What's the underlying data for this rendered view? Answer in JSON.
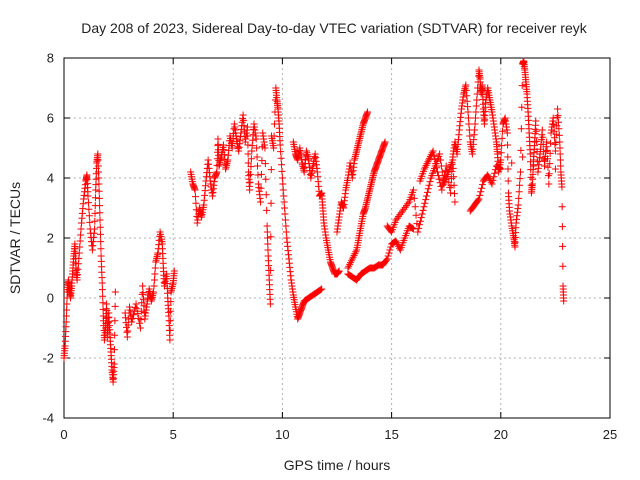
{
  "chart_data": {
    "type": "scatter",
    "title": "Day 208 of 2023, Sidereal Day-to-day VTEC variation (SDTVAR) for receiver reyk",
    "xlabel": "GPS time / hours",
    "ylabel": "SDTVAR / TECUs",
    "xlim": [
      0,
      25
    ],
    "ylim": [
      -4,
      8
    ],
    "xticks": [
      "0",
      "5",
      "10",
      "15",
      "20",
      "25"
    ],
    "yticks": [
      "-4",
      "-2",
      "0",
      "2",
      "4",
      "6",
      "8"
    ],
    "grid": true,
    "marker": "+",
    "colors": {
      "series": "#ff0000",
      "grid": "#b0b0b0",
      "axis": "#000000"
    },
    "series": [
      {
        "name": "SDTVAR",
        "points": [
          [
            0.0,
            -2.0
          ],
          [
            0.05,
            -1.6
          ],
          [
            0.1,
            -0.8
          ],
          [
            0.15,
            0.2
          ],
          [
            0.2,
            0.6
          ],
          [
            0.25,
            0.3
          ],
          [
            0.3,
            0.0
          ],
          [
            0.35,
            0.4
          ],
          [
            0.4,
            0.9
          ],
          [
            0.45,
            1.4
          ],
          [
            0.5,
            1.8
          ],
          [
            0.55,
            1.0
          ],
          [
            0.6,
            0.6
          ],
          [
            0.7,
            1.5
          ],
          [
            0.8,
            2.5
          ],
          [
            0.9,
            3.3
          ],
          [
            1.0,
            3.9
          ],
          [
            1.05,
            4.1
          ],
          [
            1.1,
            3.4
          ],
          [
            1.2,
            2.3
          ],
          [
            1.3,
            1.6
          ],
          [
            1.4,
            2.3
          ],
          [
            1.45,
            3.6
          ],
          [
            1.5,
            4.5
          ],
          [
            1.55,
            4.8
          ],
          [
            1.6,
            3.8
          ],
          [
            1.65,
            2.6
          ],
          [
            1.7,
            1.4
          ],
          [
            1.75,
            0.5
          ],
          [
            1.8,
            -0.6
          ],
          [
            1.85,
            -1.4
          ],
          [
            1.9,
            -1.0
          ],
          [
            1.95,
            -0.2
          ],
          [
            2.0,
            -1.3
          ],
          [
            2.05,
            -0.5
          ],
          [
            2.1,
            -1.2
          ],
          [
            2.15,
            -1.8
          ],
          [
            2.2,
            -2.4
          ],
          [
            2.25,
            -2.8
          ],
          [
            2.3,
            -2.2
          ],
          [
            2.35,
            0.2
          ],
          [
            2.8,
            -0.5
          ],
          [
            2.9,
            -1.3
          ],
          [
            3.0,
            -0.3
          ],
          [
            3.1,
            -0.8
          ],
          [
            3.3,
            -0.2
          ],
          [
            3.5,
            -1.0
          ],
          [
            3.6,
            0.4
          ],
          [
            3.7,
            -0.7
          ],
          [
            3.8,
            -0.2
          ],
          [
            3.9,
            0.3
          ],
          [
            4.0,
            -0.1
          ],
          [
            4.1,
            0.2
          ],
          [
            4.2,
            1.2
          ],
          [
            4.3,
            1.5
          ],
          [
            4.4,
            2.2
          ],
          [
            4.5,
            1.8
          ],
          [
            4.55,
            1.0
          ],
          [
            4.6,
            0.4
          ],
          [
            4.7,
            0.8
          ],
          [
            4.75,
            0.0
          ],
          [
            4.8,
            -0.6
          ],
          [
            4.85,
            -1.4
          ],
          [
            4.9,
            0.2
          ],
          [
            5.0,
            0.5
          ],
          [
            5.05,
            0.9
          ],
          [
            5.8,
            4.2
          ],
          [
            5.9,
            3.8
          ],
          [
            6.0,
            3.6
          ],
          [
            6.1,
            2.5
          ],
          [
            6.2,
            3.0
          ],
          [
            6.3,
            2.7
          ],
          [
            6.4,
            3.1
          ],
          [
            6.5,
            3.9
          ],
          [
            6.6,
            4.6
          ],
          [
            6.7,
            3.9
          ],
          [
            6.8,
            3.4
          ],
          [
            6.9,
            4.0
          ],
          [
            7.0,
            4.2
          ],
          [
            7.05,
            5.3
          ],
          [
            7.1,
            4.4
          ],
          [
            7.2,
            4.7
          ],
          [
            7.3,
            5.1
          ],
          [
            7.4,
            4.3
          ],
          [
            7.5,
            4.6
          ],
          [
            7.6,
            5.4
          ],
          [
            7.7,
            5.0
          ],
          [
            7.8,
            5.8
          ],
          [
            7.9,
            5.3
          ],
          [
            8.0,
            4.9
          ],
          [
            8.1,
            5.5
          ],
          [
            8.2,
            6.1
          ],
          [
            8.3,
            5.2
          ],
          [
            8.4,
            5.7
          ],
          [
            8.45,
            4.2
          ],
          [
            8.5,
            3.6
          ],
          [
            8.6,
            4.9
          ],
          [
            8.7,
            5.8
          ],
          [
            8.8,
            5.3
          ],
          [
            8.9,
            3.8
          ],
          [
            9.0,
            3.2
          ],
          [
            9.1,
            5.5
          ],
          [
            9.2,
            5.0
          ],
          [
            9.3,
            2.4
          ],
          [
            9.35,
            1.4
          ],
          [
            9.4,
            0.6
          ],
          [
            9.45,
            -0.2
          ],
          [
            9.5,
            5.4
          ],
          [
            9.6,
            5.0
          ],
          [
            9.7,
            7.0
          ],
          [
            9.75,
            6.6
          ],
          [
            9.8,
            6.3
          ],
          [
            9.85,
            5.8
          ],
          [
            9.9,
            5.1
          ],
          [
            10.0,
            4.0
          ],
          [
            10.1,
            3.0
          ],
          [
            10.2,
            2.0
          ],
          [
            10.3,
            1.3
          ],
          [
            10.4,
            0.6
          ],
          [
            10.5,
            0.1
          ],
          [
            10.6,
            -0.3
          ],
          [
            10.7,
            -0.7
          ],
          [
            10.8,
            -0.5
          ],
          [
            10.9,
            -0.3
          ],
          [
            11.0,
            -0.1
          ],
          [
            11.2,
            0.0
          ],
          [
            11.4,
            0.1
          ],
          [
            11.6,
            0.2
          ],
          [
            11.8,
            0.3
          ],
          [
            10.5,
            5.2
          ],
          [
            10.6,
            4.8
          ],
          [
            10.7,
            4.6
          ],
          [
            10.8,
            5.0
          ],
          [
            10.9,
            4.5
          ],
          [
            11.0,
            4.2
          ],
          [
            11.1,
            4.9
          ],
          [
            11.2,
            4.6
          ],
          [
            11.3,
            4.0
          ],
          [
            11.4,
            4.4
          ],
          [
            11.5,
            4.8
          ],
          [
            11.6,
            4.2
          ],
          [
            11.7,
            3.4
          ],
          [
            11.8,
            3.5
          ],
          [
            11.85,
            3.0
          ],
          [
            11.9,
            2.5
          ],
          [
            12.0,
            2.0
          ],
          [
            12.1,
            1.6
          ],
          [
            12.2,
            1.2
          ],
          [
            12.3,
            1.0
          ],
          [
            12.4,
            0.8
          ],
          [
            12.5,
            0.8
          ],
          [
            12.6,
            0.9
          ],
          [
            12.5,
            2.2
          ],
          [
            12.6,
            2.7
          ],
          [
            12.7,
            3.2
          ],
          [
            12.8,
            3.0
          ],
          [
            12.9,
            3.6
          ],
          [
            13.0,
            4.0
          ],
          [
            13.1,
            4.5
          ],
          [
            13.2,
            4.0
          ],
          [
            13.3,
            4.6
          ],
          [
            13.4,
            4.9
          ],
          [
            13.5,
            5.2
          ],
          [
            13.6,
            5.5
          ],
          [
            13.7,
            5.8
          ],
          [
            13.8,
            6.0
          ],
          [
            13.9,
            6.2
          ],
          [
            13.0,
            1.0
          ],
          [
            13.2,
            1.3
          ],
          [
            13.4,
            1.6
          ],
          [
            13.5,
            2.0
          ],
          [
            13.6,
            2.4
          ],
          [
            13.7,
            2.8
          ],
          [
            13.8,
            3.0
          ],
          [
            13.9,
            3.3
          ],
          [
            14.0,
            3.6
          ],
          [
            14.1,
            3.9
          ],
          [
            14.2,
            4.2
          ],
          [
            14.3,
            4.4
          ],
          [
            14.4,
            4.6
          ],
          [
            14.5,
            4.8
          ],
          [
            14.6,
            5.0
          ],
          [
            14.7,
            5.2
          ],
          [
            13.0,
            0.8
          ],
          [
            13.2,
            0.7
          ],
          [
            13.4,
            0.6
          ],
          [
            13.6,
            0.8
          ],
          [
            13.8,
            0.9
          ],
          [
            14.0,
            1.0
          ],
          [
            14.2,
            1.0
          ],
          [
            14.4,
            1.1
          ],
          [
            14.6,
            1.1
          ],
          [
            14.8,
            1.3
          ],
          [
            15.0,
            1.8
          ],
          [
            15.2,
            1.9
          ],
          [
            15.4,
            1.6
          ],
          [
            15.6,
            2.0
          ],
          [
            15.8,
            2.4
          ],
          [
            16.0,
            2.3
          ],
          [
            14.8,
            2.4
          ],
          [
            15.0,
            2.2
          ],
          [
            15.2,
            2.6
          ],
          [
            15.5,
            2.9
          ],
          [
            15.8,
            3.2
          ],
          [
            16.0,
            3.6
          ],
          [
            16.2,
            2.2
          ],
          [
            16.4,
            2.8
          ],
          [
            16.6,
            3.4
          ],
          [
            16.8,
            4.0
          ],
          [
            17.0,
            4.4
          ],
          [
            17.2,
            4.8
          ],
          [
            17.4,
            3.8
          ],
          [
            17.6,
            4.2
          ],
          [
            17.8,
            4.6
          ],
          [
            17.9,
            3.2
          ],
          [
            16.3,
            3.9
          ],
          [
            16.5,
            4.3
          ],
          [
            16.7,
            4.6
          ],
          [
            16.9,
            4.9
          ],
          [
            17.1,
            4.2
          ],
          [
            17.3,
            3.6
          ],
          [
            17.5,
            4.4
          ],
          [
            17.7,
            3.5
          ],
          [
            17.8,
            4.7
          ],
          [
            17.9,
            5.2
          ],
          [
            18.0,
            4.8
          ],
          [
            18.1,
            5.6
          ],
          [
            18.2,
            6.3
          ],
          [
            18.3,
            6.8
          ],
          [
            18.4,
            7.1
          ],
          [
            18.5,
            6.2
          ],
          [
            18.6,
            5.2
          ],
          [
            18.7,
            4.8
          ],
          [
            18.8,
            5.6
          ],
          [
            18.9,
            6.6
          ],
          [
            19.0,
            7.6
          ],
          [
            19.05,
            7.3
          ],
          [
            19.1,
            6.8
          ],
          [
            19.15,
            7.1
          ],
          [
            19.2,
            6.3
          ],
          [
            19.25,
            5.8
          ],
          [
            19.3,
            6.5
          ],
          [
            19.4,
            7.0
          ],
          [
            19.5,
            6.6
          ],
          [
            19.6,
            6.2
          ],
          [
            19.7,
            5.7
          ],
          [
            19.8,
            5.2
          ],
          [
            19.85,
            4.8
          ],
          [
            19.9,
            4.2
          ],
          [
            20.0,
            4.6
          ],
          [
            20.1,
            5.8
          ],
          [
            20.2,
            6.0
          ],
          [
            20.3,
            5.5
          ],
          [
            20.35,
            3.5
          ],
          [
            20.4,
            2.9
          ],
          [
            20.5,
            2.4
          ],
          [
            20.6,
            2.0
          ],
          [
            20.65,
            1.7
          ],
          [
            20.7,
            2.5
          ],
          [
            20.8,
            3.1
          ],
          [
            20.9,
            4.2
          ],
          [
            21.0,
            7.8
          ],
          [
            21.05,
            7.9
          ],
          [
            21.1,
            7.6
          ],
          [
            21.15,
            7.2
          ],
          [
            21.2,
            6.8
          ],
          [
            21.25,
            6.2
          ],
          [
            21.3,
            5.5
          ],
          [
            21.35,
            4.8
          ],
          [
            21.4,
            3.5
          ],
          [
            21.45,
            3.8
          ],
          [
            21.5,
            4.6
          ],
          [
            21.55,
            5.2
          ],
          [
            21.6,
            5.9
          ],
          [
            21.7,
            4.2
          ],
          [
            21.8,
            4.8
          ],
          [
            21.9,
            5.6
          ],
          [
            22.0,
            4.4
          ],
          [
            22.1,
            5.2
          ],
          [
            22.2,
            3.8
          ],
          [
            22.3,
            5.5
          ],
          [
            22.4,
            6.0
          ],
          [
            22.5,
            4.9
          ],
          [
            22.6,
            6.3
          ],
          [
            22.7,
            5.2
          ],
          [
            22.75,
            4.2
          ],
          [
            22.8,
            3.7
          ],
          [
            22.85,
            0.4
          ],
          [
            22.88,
            -0.1
          ],
          [
            18.6,
            2.9
          ],
          [
            18.8,
            3.1
          ],
          [
            19.0,
            3.3
          ],
          [
            19.2,
            3.9
          ],
          [
            19.4,
            4.1
          ],
          [
            19.6,
            3.8
          ],
          [
            19.8,
            4.4
          ],
          [
            20.0,
            4.3
          ],
          [
            20.5,
            4.5
          ],
          [
            21.0,
            4.7
          ],
          [
            21.5,
            4.4
          ],
          [
            22.0,
            4.6
          ],
          [
            22.5,
            4.3
          ]
        ]
      }
    ]
  }
}
